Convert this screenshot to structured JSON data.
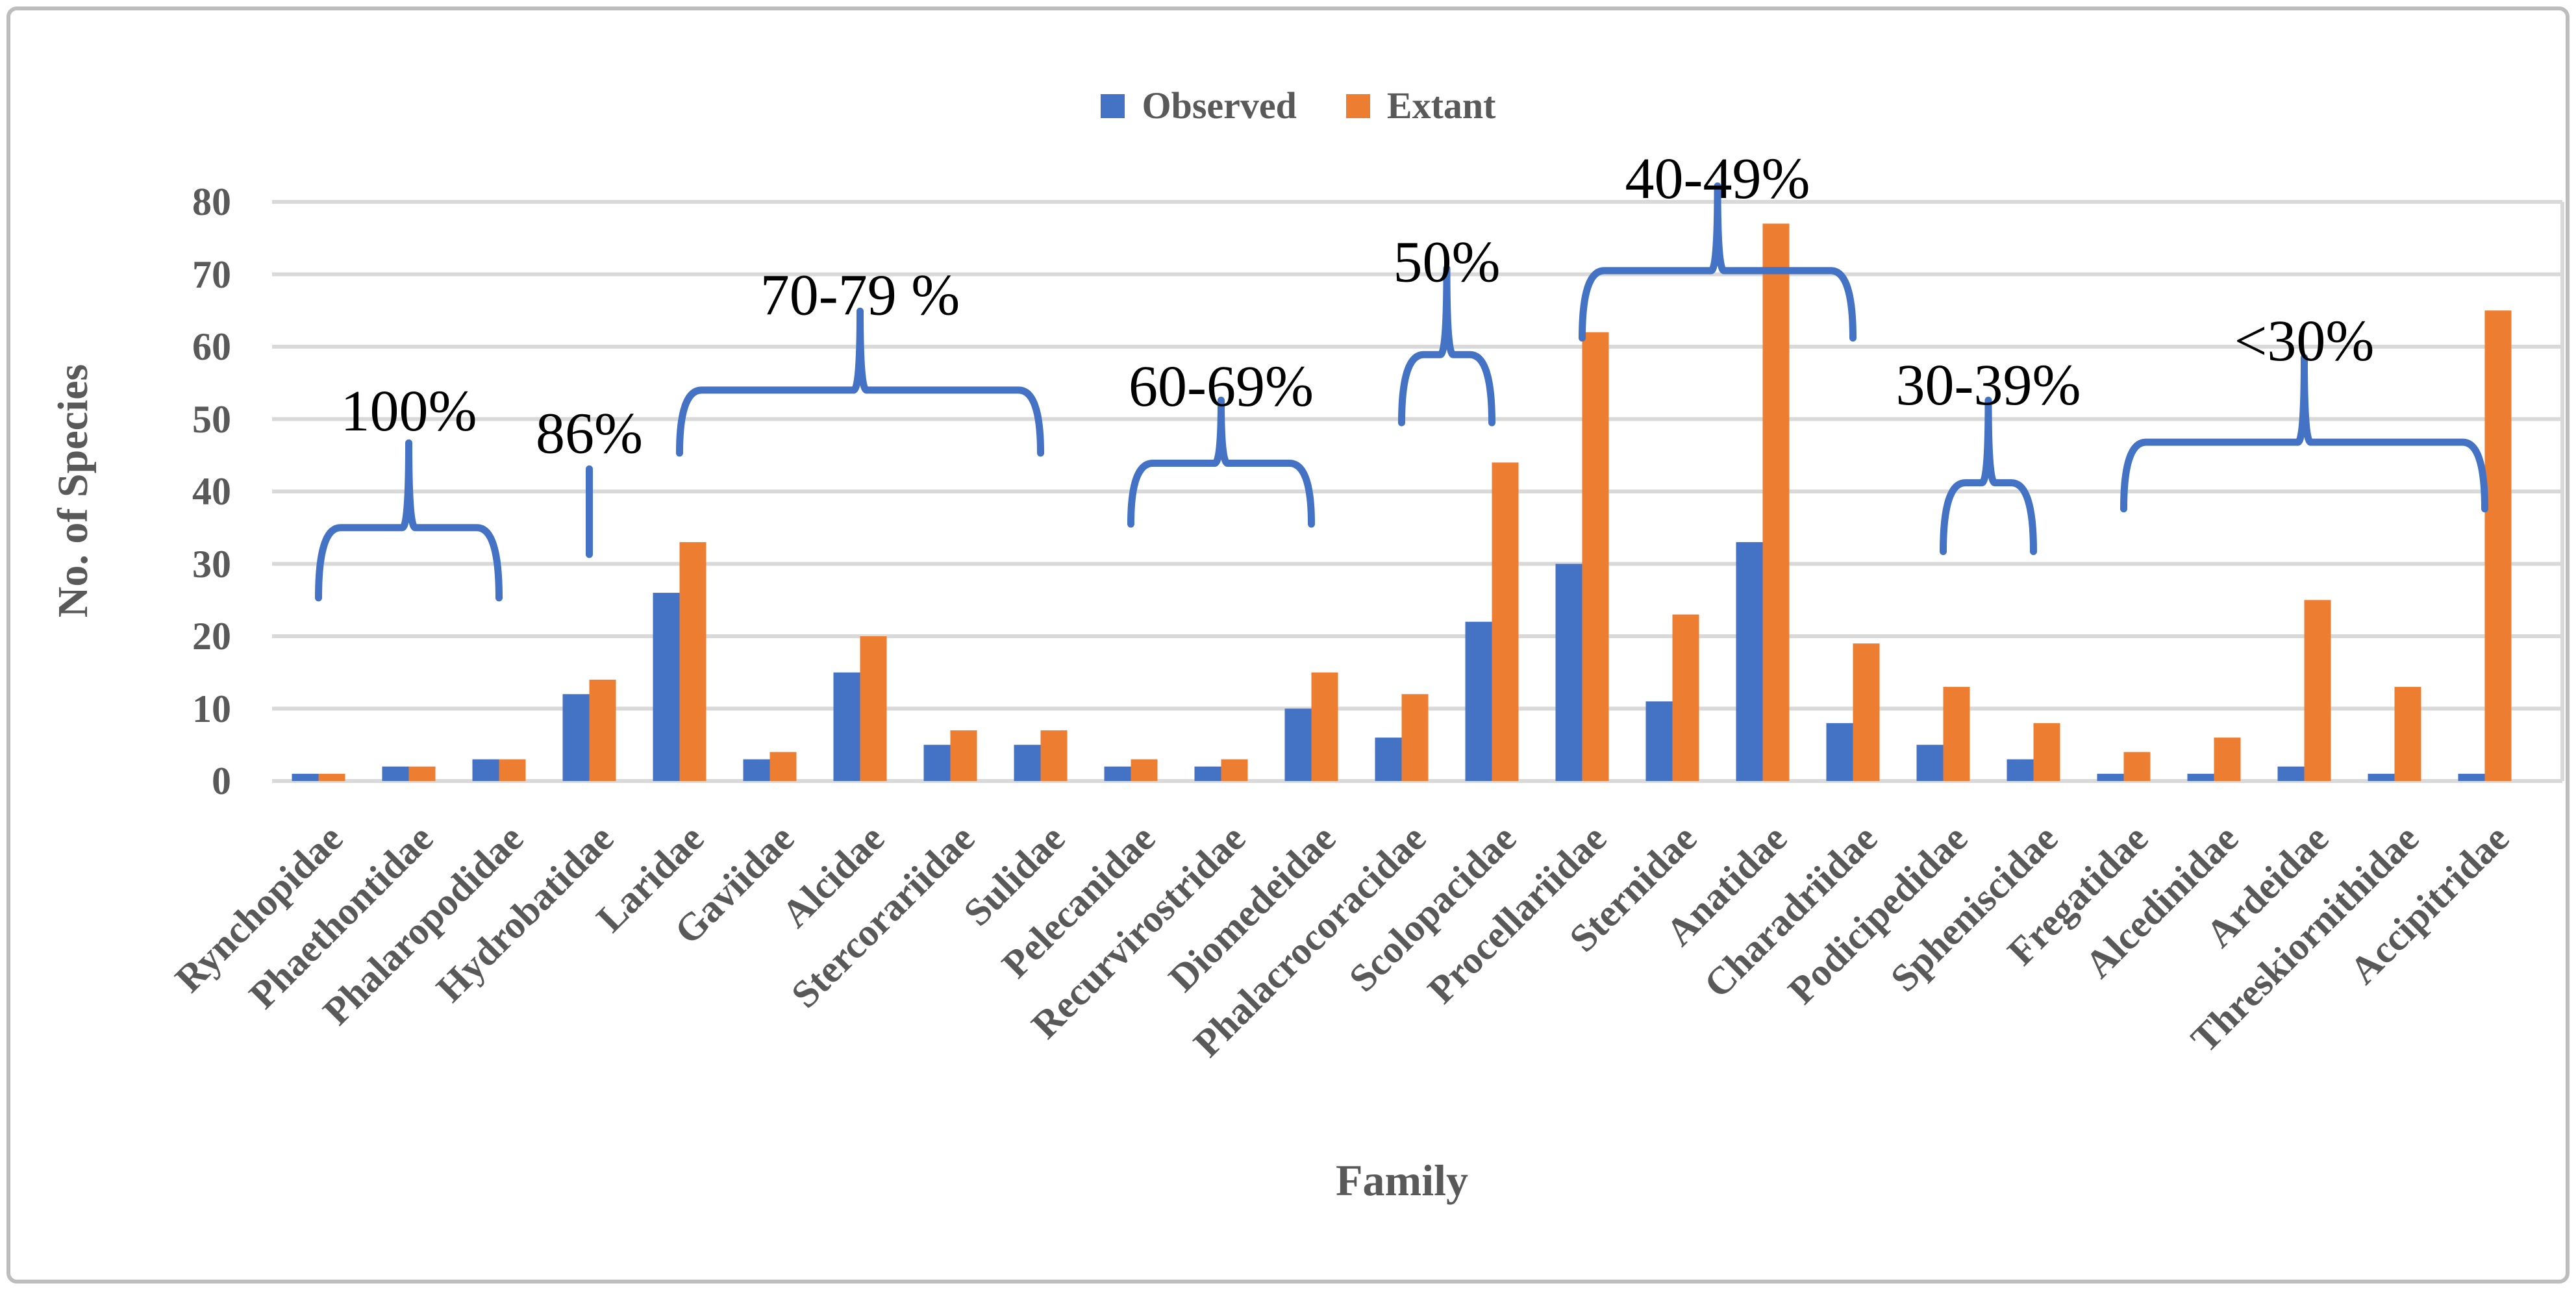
{
  "legend": {
    "items": [
      {
        "label": "Observed",
        "color": "#4472C4"
      },
      {
        "label": "Extant",
        "color": "#ED7D31"
      }
    ]
  },
  "colors": {
    "observed": "#4472C4",
    "extant": "#ED7D31",
    "gridline": "#D9D9D9",
    "axis_text": "#595959",
    "annotation_text": "#000000",
    "brace": "#4472C4",
    "figure_border": "#BDBDBD"
  },
  "chart_data": {
    "type": "bar",
    "title": "",
    "xlabel": "Family",
    "ylabel": "No. of Species",
    "ylim": [
      0,
      80
    ],
    "yticks": [
      0,
      10,
      20,
      30,
      40,
      50,
      60,
      70,
      80
    ],
    "grid": true,
    "legend_position": "top-center",
    "categories": [
      "Rynchopidae",
      "Phaethontidae",
      "Phalaropodidae",
      "Hydrobatidae",
      "Laridae",
      "Gaviidae",
      "Alcidae",
      "Stercorariidae",
      "Sulidae",
      "Pelecanidae",
      "Recurvirostridae",
      "Diomedeidae",
      "Phalacrocoracidae",
      "Scolopacidae",
      "Procellariidae",
      "Sternidae",
      "Anatidae",
      "Charadriidae",
      "Podicipedidae",
      "Spheniscidae",
      "Fregatidae",
      "Alcedinidae",
      "Ardeidae",
      "Threskiornithidae",
      "Accipitridae"
    ],
    "series": [
      {
        "name": "Observed",
        "color": "#4472C4",
        "values": [
          1,
          2,
          3,
          12,
          26,
          3,
          15,
          5,
          5,
          2,
          2,
          10,
          6,
          22,
          30,
          11,
          33,
          8,
          5,
          3,
          1,
          1,
          2,
          1,
          1
        ]
      },
      {
        "name": "Extant",
        "color": "#ED7D31",
        "values": [
          1,
          2,
          3,
          14,
          33,
          4,
          20,
          7,
          7,
          3,
          3,
          15,
          12,
          44,
          62,
          23,
          77,
          19,
          13,
          8,
          4,
          6,
          25,
          13,
          65
        ]
      }
    ],
    "annotations": [
      {
        "label": "100%",
        "type": "brace",
        "from_index": 0,
        "to_index": 2,
        "body": 35.0,
        "arm": 25.3,
        "peak": 46.7,
        "label_v": 51.3
      },
      {
        "label": "86%",
        "type": "tick",
        "at_index": 3,
        "top": 43.1,
        "bottom": 31.3,
        "label_v": 48.2
      },
      {
        "label": "70-79 %",
        "type": "brace",
        "from_index": 4,
        "to_index": 8,
        "body": 54.0,
        "arm": 45.3,
        "peak": 64.9,
        "label_v": 67.3
      },
      {
        "label": "60-69%",
        "type": "brace",
        "from_index": 9,
        "to_index": 11,
        "body": 43.9,
        "arm": 35.5,
        "peak": 52.6,
        "label_v": 54.7
      },
      {
        "label": "50%",
        "type": "brace",
        "from_index": 12,
        "to_index": 13,
        "body": 58.9,
        "arm": 49.5,
        "peak": 70.8,
        "label_v": 71.9
      },
      {
        "label": "40-49%",
        "type": "brace",
        "from_index": 14,
        "to_index": 17,
        "body": 70.5,
        "arm": 61.2,
        "peak": 82.2,
        "label_v": 83.4
      },
      {
        "label": "30-39%",
        "type": "brace",
        "from_index": 18,
        "to_index": 19,
        "body": 41.2,
        "arm": 31.7,
        "peak": 52.6,
        "label_v": 54.9
      },
      {
        "label": "<30%",
        "type": "brace",
        "from_index": 20,
        "to_index": 24,
        "body": 46.8,
        "arm": 37.6,
        "peak": 58.5,
        "label_v": 61.0
      }
    ]
  }
}
